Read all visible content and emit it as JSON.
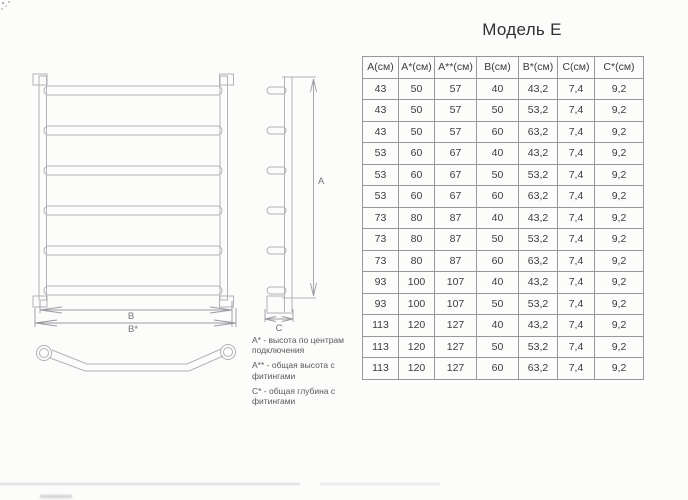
{
  "title": "Модель Е",
  "table": {
    "headers": [
      "А(см)",
      "А*(см)",
      "А**(см)",
      "В(см)",
      "В*(см)",
      "С(см)",
      "С*(см)"
    ],
    "rows": [
      [
        "43",
        "50",
        "57",
        "40",
        "43,2",
        "7,4",
        "9,2"
      ],
      [
        "43",
        "50",
        "57",
        "50",
        "53,2",
        "7,4",
        "9,2"
      ],
      [
        "43",
        "50",
        "57",
        "60",
        "63,2",
        "7,4",
        "9,2"
      ],
      [
        "53",
        "60",
        "67",
        "40",
        "43,2",
        "7,4",
        "9,2"
      ],
      [
        "53",
        "60",
        "67",
        "50",
        "53,2",
        "7,4",
        "9,2"
      ],
      [
        "53",
        "60",
        "67",
        "60",
        "63,2",
        "7,4",
        "9,2"
      ],
      [
        "73",
        "80",
        "87",
        "40",
        "43,2",
        "7,4",
        "9,2"
      ],
      [
        "73",
        "80",
        "87",
        "50",
        "53,2",
        "7,4",
        "9,2"
      ],
      [
        "73",
        "80",
        "87",
        "60",
        "63,2",
        "7,4",
        "9,2"
      ],
      [
        "93",
        "100",
        "107",
        "40",
        "43,2",
        "7,4",
        "9,2"
      ],
      [
        "93",
        "100",
        "107",
        "50",
        "53,2",
        "7,4",
        "9,2"
      ],
      [
        "113",
        "120",
        "127",
        "40",
        "43,2",
        "7,4",
        "9,2"
      ],
      [
        "113",
        "120",
        "127",
        "50",
        "53,2",
        "7,4",
        "9,2"
      ],
      [
        "113",
        "120",
        "127",
        "60",
        "63,2",
        "7,4",
        "9,2"
      ]
    ]
  },
  "diagram": {
    "labels": {
      "b": "В",
      "b_star": "В*",
      "a": "А",
      "c": "С"
    },
    "line_color": "#b2b2ba",
    "dim_color": "#9c9ca4"
  },
  "footnotes": [
    "А* - высота по центрам подключения",
    "А** - общая высота с фитингами",
    "С* - общая глубина с фитингами"
  ]
}
